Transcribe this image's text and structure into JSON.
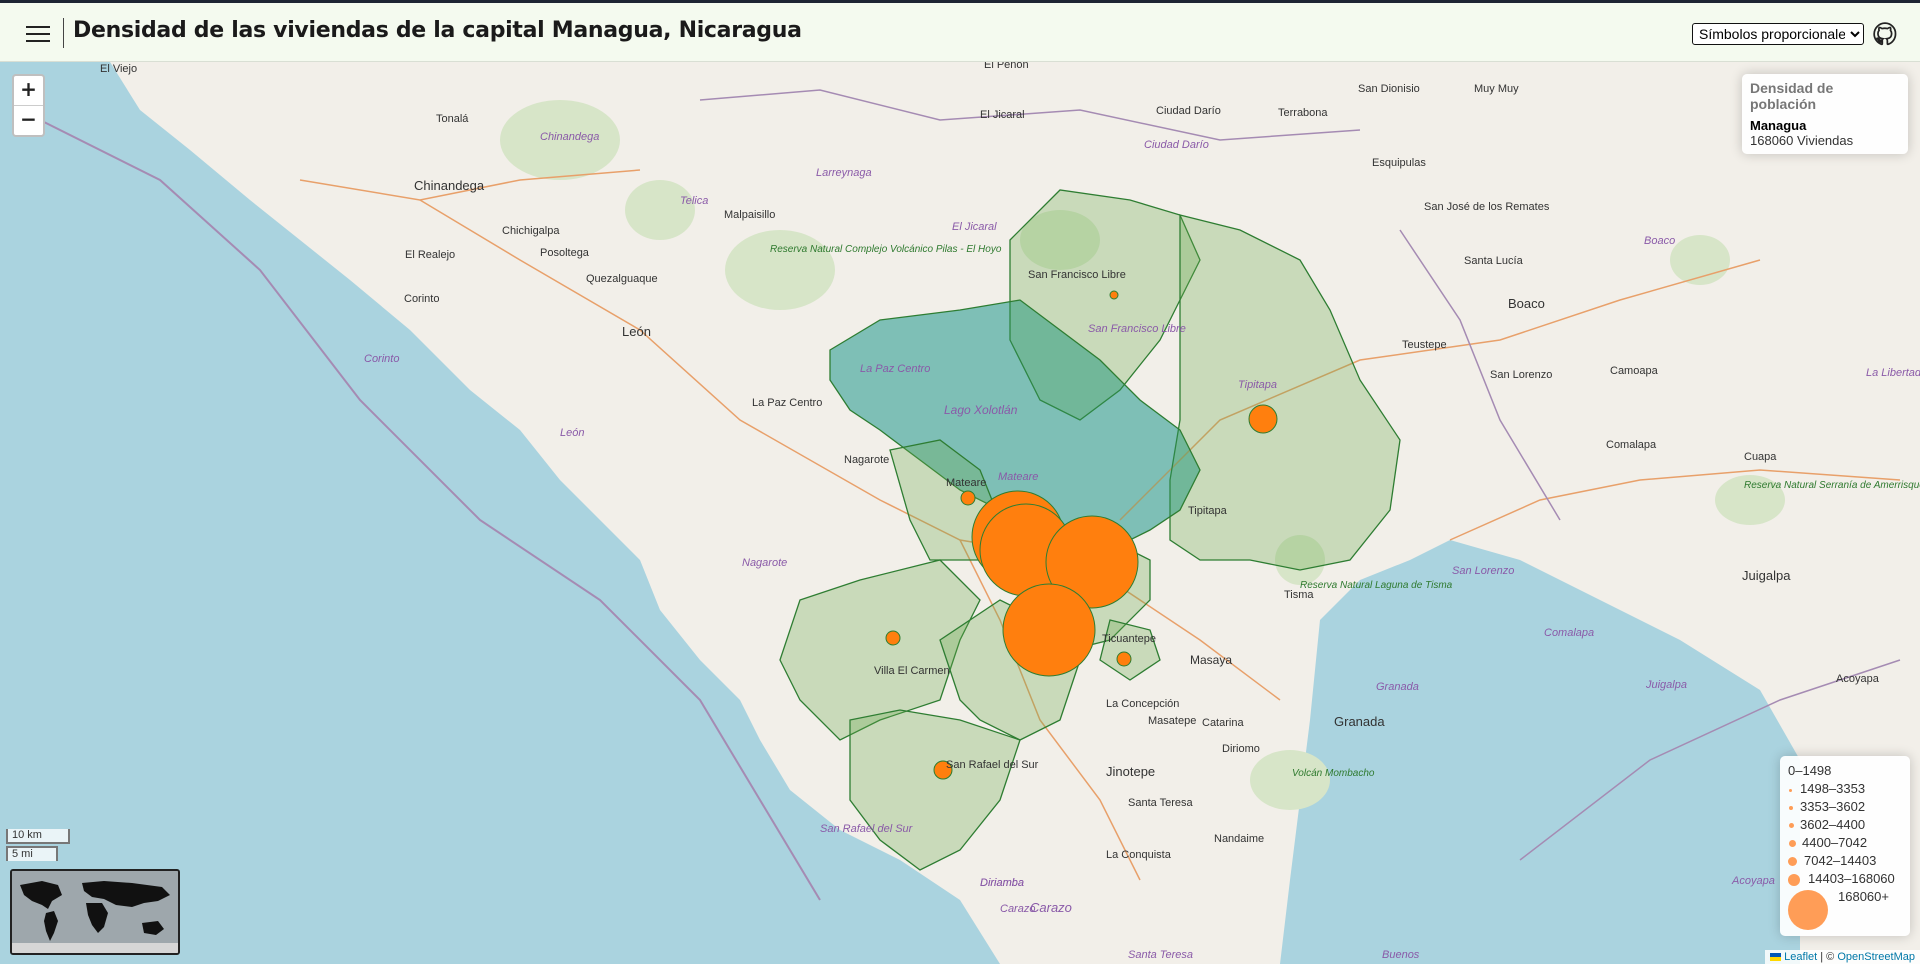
{
  "header": {
    "title": "Densidad de las viviendas de la capital Managua, Nicaragua",
    "selector_value": "Símbolos proporcionales",
    "menu_icon": "hamburger-icon",
    "repo_icon": "github-icon"
  },
  "zoom": {
    "in": "+",
    "out": "−"
  },
  "info": {
    "heading": "Densidad de población",
    "name": "Managua",
    "value": "168060 Viviendas"
  },
  "legend": {
    "items": [
      "0–1498",
      "1498–3353",
      "3353–3602",
      "3602–4400",
      "4400–7042",
      "7042–14403",
      "14403–168060",
      "168060+"
    ],
    "color": "#ff8c3a"
  },
  "scale": {
    "km": "10 km",
    "mi": "5 mi"
  },
  "attribution": {
    "leaflet": "Leaflet",
    "sep": " | © ",
    "osm": "OpenStreetMap"
  },
  "colors": {
    "symbol": "#ff7f0e",
    "polygon_fill": "#6aa84f",
    "polygon_stroke": "#2e7d32",
    "lake": "#aad3df"
  },
  "map_labels": {
    "towns": [
      "El Viejo",
      "Tonalá",
      "Chinandega",
      "Chichigalpa",
      "Posoltega",
      "El Realejo",
      "Corinto",
      "Quezalguaque",
      "León",
      "Malpaisillo",
      "La Paz Centro",
      "Nagarote",
      "Mateare",
      "Villa El Carmen",
      "San Rafael del Sur",
      "San Francisco Libre",
      "Tipitapa",
      "Tisma",
      "Masaya",
      "Ticuantepe",
      "La Concepción",
      "Masatepe",
      "Catarina",
      "Diriomo",
      "Granada",
      "Jinotepe",
      "Santa Teresa",
      "La Conquista",
      "Nandaime",
      "Carazo",
      "Diriamba",
      "El Jicaral",
      "Ciudad Darío",
      "Terrabona",
      "San Dionisio",
      "Muy Muy",
      "Esquipulas",
      "San José de los Remates",
      "Santa Lucía",
      "Boaco",
      "Teustepe",
      "San Lorenzo",
      "Camoapa",
      "Comalapa",
      "Cuapa",
      "Juigalpa",
      "Acoyapa",
      "El Peñón"
    ],
    "regions": [
      "Chinandega",
      "Corinto",
      "León",
      "Larreynaga",
      "Telica",
      "El Jicaral",
      "Ciudad Darío",
      "La Paz Centro",
      "Nagarote",
      "San Rafael del Sur",
      "Boaco",
      "San Lorenzo",
      "Comalapa",
      "Juigalpa",
      "Granada",
      "Acoyapa",
      "Carazo",
      "Diriamba",
      "Santa Teresa",
      "Buenos",
      "La Libertad",
      "San Francisco Libre",
      "Tipitapa",
      "Mateare"
    ],
    "water": [
      "Lago Xolotlán"
    ],
    "parks": [
      "Reserva Natural Complejo Volcánico Pilas - El Hoyo",
      "Reserva Natural Laguna de Tisma",
      "Volcán Mombacho",
      "Reserva Natural Serranía de Amerrisque"
    ]
  }
}
